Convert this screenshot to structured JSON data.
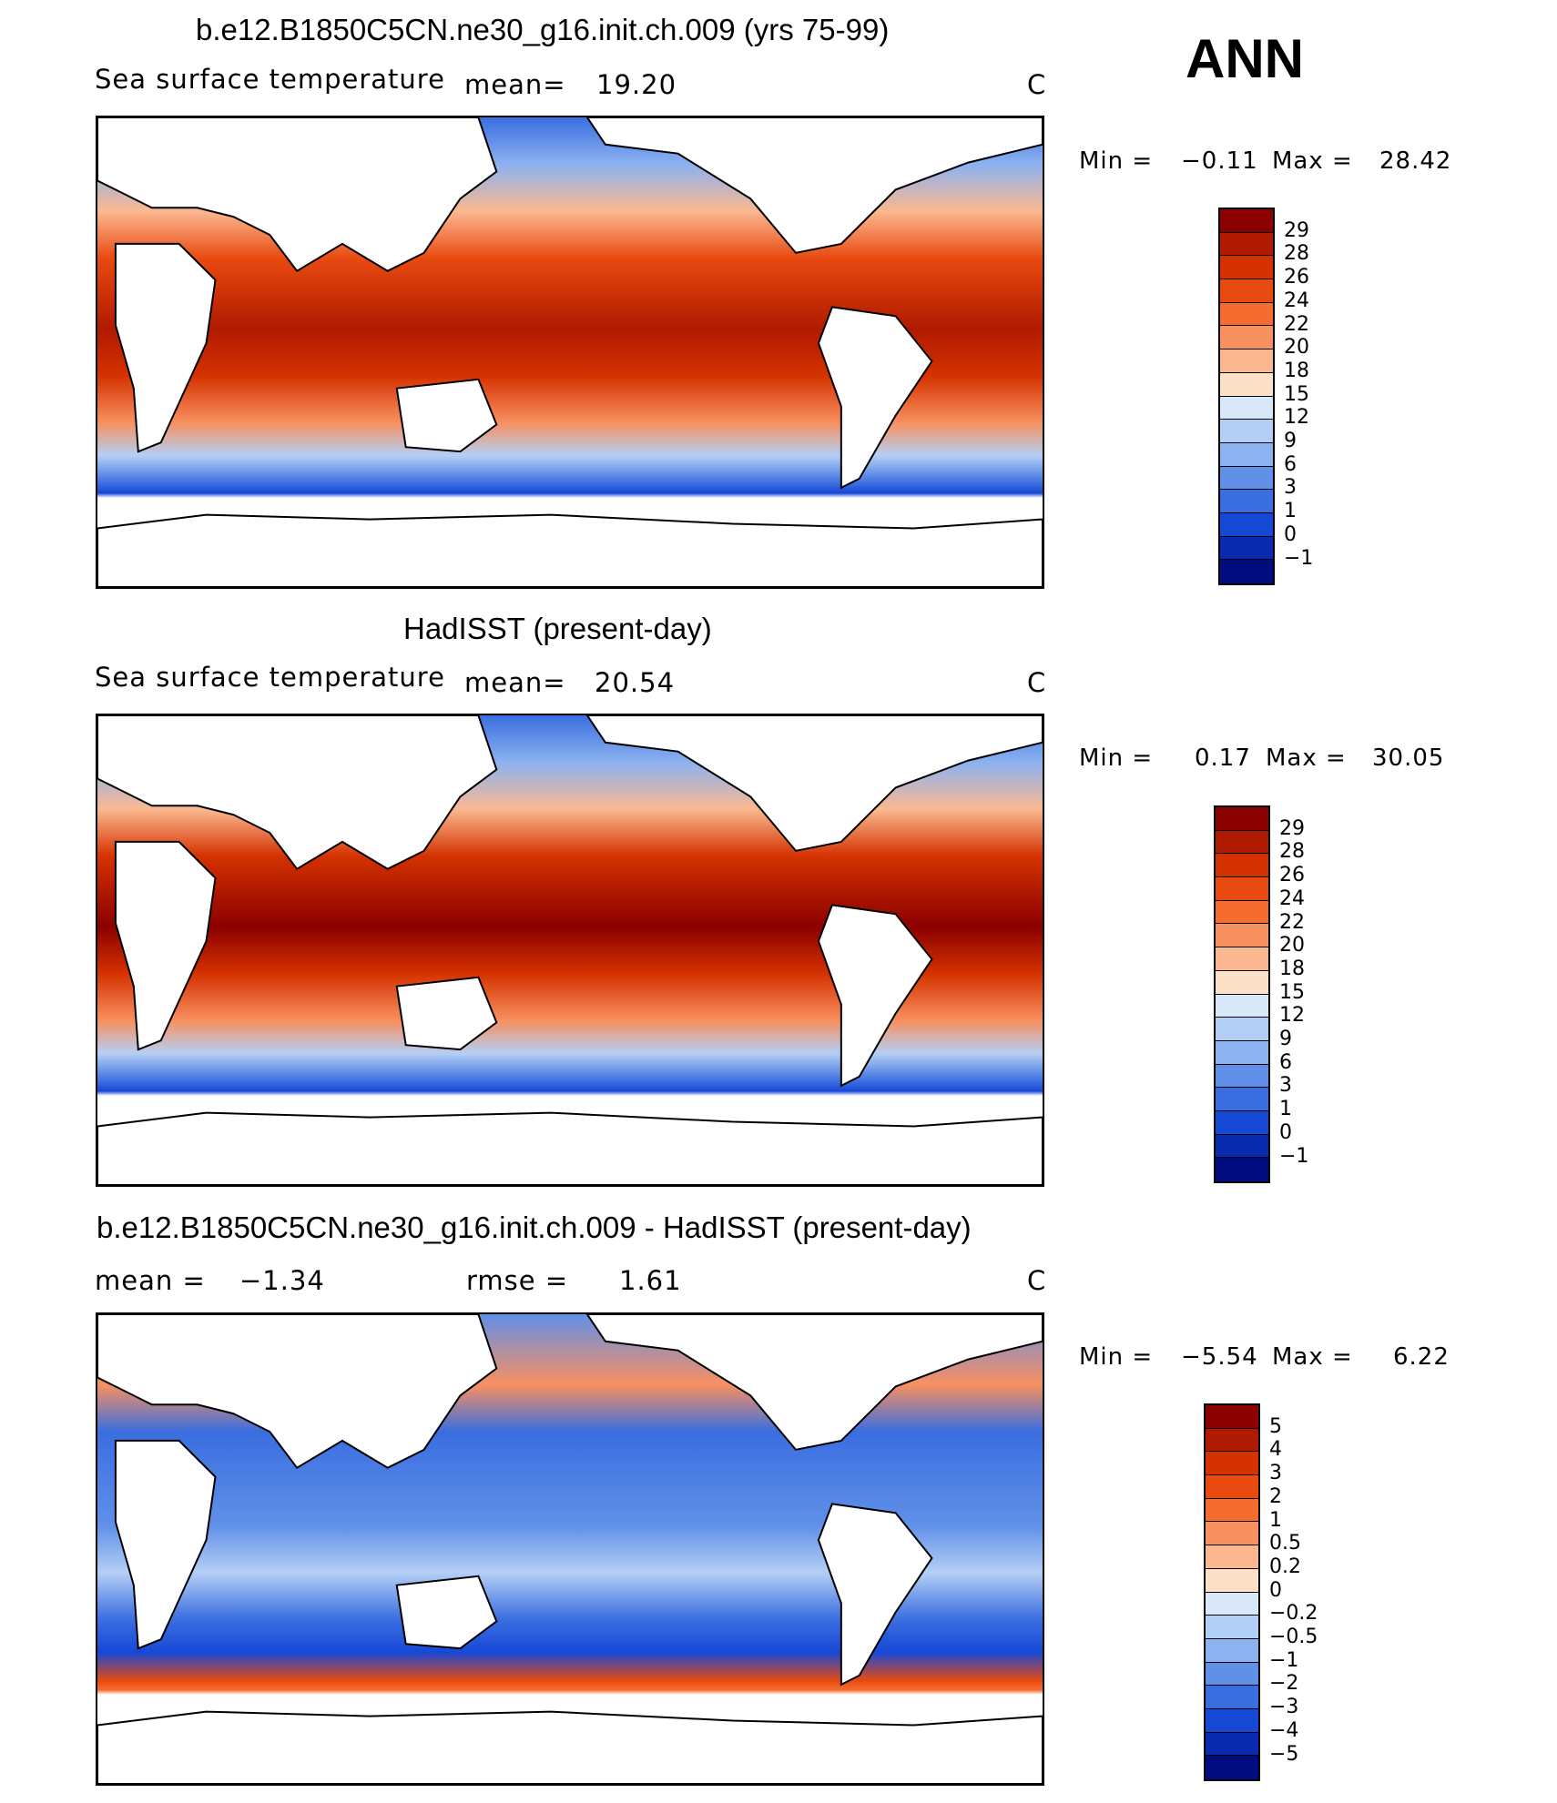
{
  "season": "ANN",
  "chart_data": [
    {
      "type": "heatmap",
      "title": "b.e12.B1850C5CN.ne30_g16.init.ch.009 (yrs 75-99)",
      "subtitle": "Sea surface temperature",
      "stat_label": "mean=",
      "stat_value": "19.20",
      "units": "C",
      "min_label": "Min =",
      "min_value": "−0.11",
      "max_label": "Max =",
      "max_value": "28.42",
      "colorbar_levels": [
        "29",
        "28",
        "26",
        "24",
        "22",
        "20",
        "18",
        "15",
        "12",
        "9",
        "6",
        "3",
        "1",
        "0",
        "−1"
      ],
      "colorbar_colors": [
        "#8b0000",
        "#b01a00",
        "#d43200",
        "#e84a10",
        "#f56c30",
        "#f89060",
        "#fbb890",
        "#fde0c8",
        "#d8e8f8",
        "#b4cff5",
        "#8cb2f0",
        "#6090e8",
        "#3a6ee0",
        "#1648d6",
        "#0a2ab0",
        "#000c80"
      ]
    },
    {
      "type": "heatmap",
      "title": "HadISST (present-day)",
      "subtitle": "Sea surface temperature",
      "stat_label": "mean=",
      "stat_value": "20.54",
      "units": "C",
      "min_label": "Min =",
      "min_value": "0.17",
      "max_label": "Max =",
      "max_value": "30.05",
      "colorbar_levels": [
        "29",
        "28",
        "26",
        "24",
        "22",
        "20",
        "18",
        "15",
        "12",
        "9",
        "6",
        "3",
        "1",
        "0",
        "−1"
      ],
      "colorbar_colors": [
        "#8b0000",
        "#b01a00",
        "#d43200",
        "#e84a10",
        "#f56c30",
        "#f89060",
        "#fbb890",
        "#fde0c8",
        "#d8e8f8",
        "#b4cff5",
        "#8cb2f0",
        "#6090e8",
        "#3a6ee0",
        "#1648d6",
        "#0a2ab0",
        "#000c80"
      ]
    },
    {
      "type": "heatmap",
      "title": "b.e12.B1850C5CN.ne30_g16.init.ch.009 - HadISST (present-day)",
      "subtitle": "",
      "stat_label": "mean =",
      "stat_value": "−1.34",
      "rmse_label": "rmse =",
      "rmse_value": "1.61",
      "units": "C",
      "min_label": "Min =",
      "min_value": "−5.54",
      "max_label": "Max =",
      "max_value": "6.22",
      "colorbar_levels": [
        "5",
        "4",
        "3",
        "2",
        "1",
        "0.5",
        "0.2",
        "0",
        "−0.2",
        "−0.5",
        "−1",
        "−2",
        "−3",
        "−4",
        "−5"
      ],
      "colorbar_colors": [
        "#8b0000",
        "#b01a00",
        "#d43200",
        "#e84a10",
        "#f56c30",
        "#f89060",
        "#fbb890",
        "#fde0c8",
        "#d8e8f8",
        "#b4cff5",
        "#8cb2f0",
        "#6090e8",
        "#3a6ee0",
        "#1648d6",
        "#0a2ab0",
        "#000c80"
      ]
    }
  ]
}
